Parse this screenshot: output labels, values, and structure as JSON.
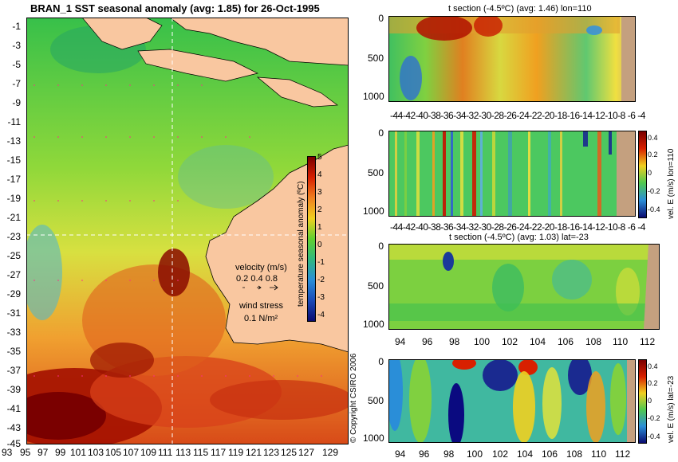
{
  "main_title": "BRAN_1  SST seasonal anomaly (avg: 1.85) for 26-Oct-1995",
  "map": {
    "lat_ticks": [
      "-1",
      "-3",
      "-5",
      "-7",
      "-9",
      "-11",
      "-13",
      "-15",
      "-17",
      "-19",
      "-21",
      "-23",
      "-25",
      "-27",
      "-29",
      "-31",
      "-33",
      "-35",
      "-37",
      "-39",
      "-41",
      "-43",
      "-45"
    ],
    "lon_ticks": [
      "93",
      "95",
      "97",
      "99",
      "101",
      "103",
      "105",
      "107",
      "109",
      "111",
      "113",
      "115",
      "117",
      "119",
      "121",
      "123",
      "125",
      "127",
      "129"
    ],
    "colorbar_label": "temperature seasonal anomaly (ºC)",
    "colorbar_ticks": [
      "5",
      "4",
      "3",
      "2",
      "1",
      "0",
      "-1",
      "-2",
      "-3",
      "-4"
    ],
    "velocity_label": "velocity (m/s)",
    "velocity_values": "0.2 0.4 0.8",
    "wind_label": "wind stress",
    "wind_value": "0.1 N/m²",
    "copyright": "© Copyright CSIRO 2006"
  },
  "panels": [
    {
      "title": "t section (-4.5ºC) (avg: 1.46) lon=110",
      "y_ticks": [
        "0",
        "500",
        "1000"
      ],
      "x_ticks": [
        "-44",
        "-42",
        "-40",
        "-38",
        "-36",
        "-34",
        "-32",
        "-30",
        "-28",
        "-26",
        "-24",
        "-22",
        "-20",
        "-18",
        "-16",
        "-14",
        "-12",
        "-10",
        "-8",
        "-6",
        "-4"
      ]
    },
    {
      "title": "",
      "y_ticks": [
        "0",
        "500",
        "1000"
      ],
      "x_ticks": [
        "-44",
        "-42",
        "-40",
        "-38",
        "-36",
        "-34",
        "-32",
        "-30",
        "-28",
        "-26",
        "-24",
        "-22",
        "-20",
        "-18",
        "-16",
        "-14",
        "-12",
        "-10",
        "-8",
        "-6",
        "-4"
      ],
      "cbar_label": "vel. E (m/s) lon=110",
      "cbar_ticks": [
        "0.4",
        "0.2",
        "0",
        "-0.2",
        "-0.4"
      ]
    },
    {
      "title": "t section (-4.5ºC) (avg: 1.03) lat=-23",
      "y_ticks": [
        "0",
        "500",
        "1000"
      ],
      "x_ticks": [
        "94",
        "96",
        "98",
        "100",
        "102",
        "104",
        "106",
        "108",
        "110",
        "112"
      ]
    },
    {
      "title": "",
      "y_ticks": [
        "0",
        "500",
        "1000"
      ],
      "x_ticks": [
        "94",
        "96",
        "98",
        "100",
        "102",
        "104",
        "106",
        "108",
        "110",
        "112"
      ],
      "cbar_label": "vel. E (m/s) lat=-23",
      "cbar_ticks": [
        "0.4",
        "0.2",
        "0",
        "-0.2",
        "-0.4"
      ]
    }
  ],
  "colors": {
    "land": "#f9c7a0",
    "bathy": "#c4a07f",
    "warm_strong": "#7a0000",
    "warm": "#e05a1a",
    "neutral": "#55c84a",
    "cool": "#2a8ed8",
    "cold": "#1a2a90"
  }
}
